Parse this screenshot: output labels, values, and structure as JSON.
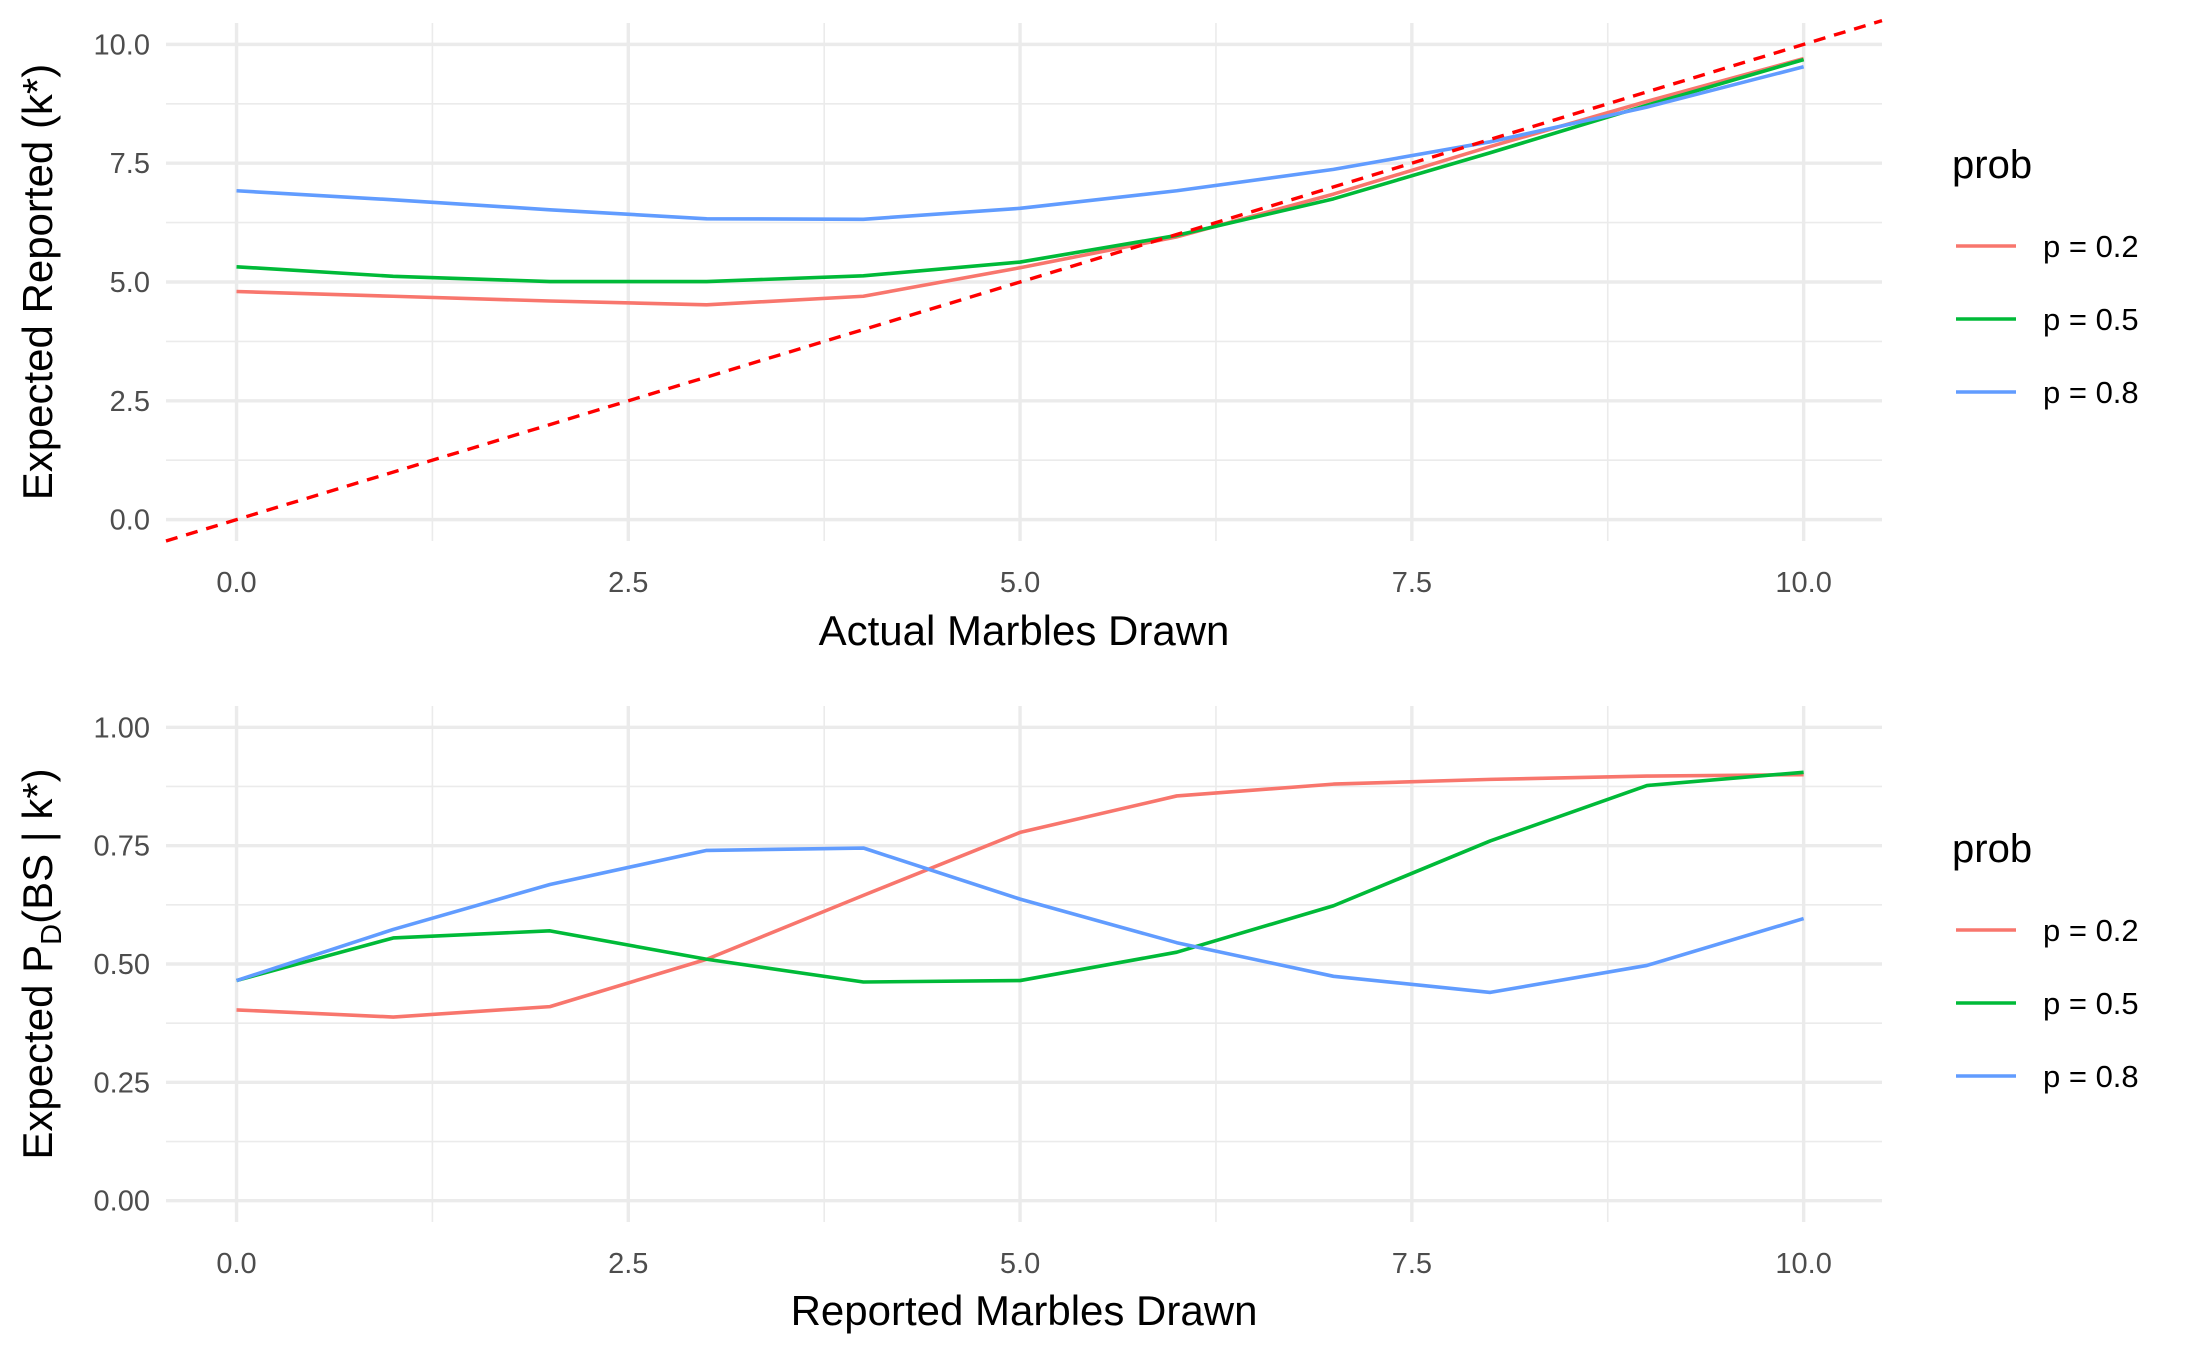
{
  "chart_data": [
    {
      "type": "line",
      "xlabel": "Actual Marbles Drawn",
      "ylabel": "Expected Reported (k*)",
      "xlim": [
        -0.45,
        10.5
      ],
      "ylim": [
        -0.45,
        10.45
      ],
      "xticks": [
        0,
        2.5,
        5,
        7.5,
        10
      ],
      "xtick_labels": [
        "0.0",
        "2.5",
        "5.0",
        "7.5",
        "10.0"
      ],
      "yticks": [
        0,
        2.5,
        5,
        7.5,
        10
      ],
      "ytick_labels": [
        "0.0",
        "2.5",
        "5.0",
        "7.5",
        "10.0"
      ],
      "grid": true,
      "legend": {
        "title": "prob",
        "position": "right"
      },
      "x": [
        0,
        1,
        2,
        3,
        4,
        5,
        6,
        7,
        8,
        9,
        10
      ],
      "series": [
        {
          "name": "p = 0.2",
          "color": "#F8766D",
          "values": [
            4.8,
            4.7,
            4.6,
            4.52,
            4.7,
            5.3,
            5.95,
            6.85,
            7.85,
            8.8,
            9.7
          ]
        },
        {
          "name": "p = 0.5",
          "color": "#00BA38",
          "values": [
            5.32,
            5.12,
            5.01,
            5.01,
            5.13,
            5.42,
            5.98,
            6.75,
            7.72,
            8.72,
            9.68
          ]
        },
        {
          "name": "p = 0.8",
          "color": "#619CFF",
          "values": [
            6.92,
            6.73,
            6.52,
            6.33,
            6.32,
            6.55,
            6.92,
            7.37,
            7.95,
            8.68,
            9.53
          ]
        }
      ],
      "reference_line": {
        "style": "dashed",
        "color": "#FF0000",
        "slope": 1,
        "intercept": 0
      }
    },
    {
      "type": "line",
      "xlabel": "Reported Marbles Drawn",
      "ylabel": "Expected P_D(BS | k*)",
      "ylabel_parts": {
        "pre": "Expected P",
        "sub": "D",
        "post": "(BS | k*)"
      },
      "xlim": [
        -0.45,
        10.5
      ],
      "ylim": [
        -0.045,
        1.045
      ],
      "xticks": [
        0,
        2.5,
        5,
        7.5,
        10
      ],
      "xtick_labels": [
        "0.0",
        "2.5",
        "5.0",
        "7.5",
        "10.0"
      ],
      "yticks": [
        0,
        0.25,
        0.5,
        0.75,
        1
      ],
      "ytick_labels": [
        "0.00",
        "0.25",
        "0.50",
        "0.75",
        "1.00"
      ],
      "grid": true,
      "legend": {
        "title": "prob",
        "position": "right"
      },
      "x": [
        0,
        1,
        2,
        3,
        4,
        5,
        6,
        7,
        8,
        9,
        10
      ],
      "series": [
        {
          "name": "p = 0.2",
          "color": "#F8766D",
          "values": [
            0.403,
            0.388,
            0.41,
            0.51,
            0.645,
            0.778,
            0.855,
            0.88,
            0.89,
            0.897,
            0.9
          ]
        },
        {
          "name": "p = 0.5",
          "color": "#00BA38",
          "values": [
            0.465,
            0.555,
            0.57,
            0.51,
            0.462,
            0.465,
            0.525,
            0.623,
            0.76,
            0.877,
            0.905
          ]
        },
        {
          "name": "p = 0.8",
          "color": "#619CFF",
          "values": [
            0.465,
            0.573,
            0.668,
            0.74,
            0.745,
            0.637,
            0.545,
            0.474,
            0.44,
            0.497,
            0.596
          ]
        }
      ]
    }
  ]
}
